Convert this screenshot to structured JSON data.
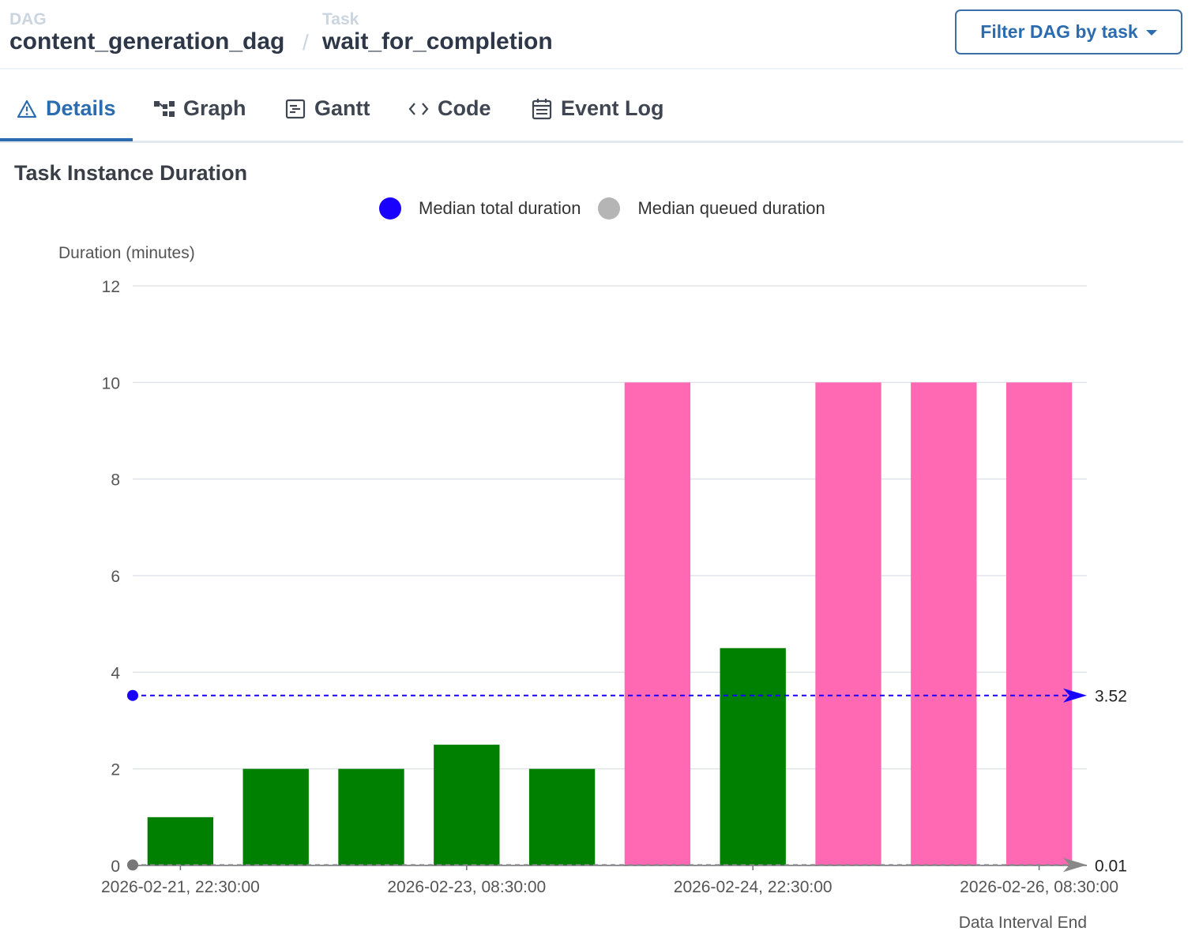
{
  "breadcrumb": {
    "dag_label": "DAG",
    "dag_value": "content_generation_dag",
    "separator": "/",
    "task_label": "Task",
    "task_value": "wait_for_completion"
  },
  "filter_button": {
    "label": "Filter DAG by task"
  },
  "tabs": [
    {
      "label": "Details",
      "icon": "warning-triangle-icon",
      "active": true
    },
    {
      "label": "Graph",
      "icon": "graph-icon",
      "active": false
    },
    {
      "label": "Gantt",
      "icon": "gantt-icon",
      "active": false
    },
    {
      "label": "Code",
      "icon": "code-icon",
      "active": false
    },
    {
      "label": "Event Log",
      "icon": "calendar-icon",
      "active": false
    }
  ],
  "section": {
    "title": "Task Instance Duration"
  },
  "legend": {
    "total_label": "Median total duration",
    "queued_label": "Median queued duration"
  },
  "colors": {
    "success": "#008000",
    "up_for_reschedule": "#ff69b4",
    "median_total": "#1a00ff",
    "median_queued": "#888888",
    "accent": "#2b6cb0"
  },
  "chart_data": {
    "type": "bar",
    "ylabel": "Duration (minutes)",
    "xlabel": "Data Interval End",
    "ylim": [
      0,
      12
    ],
    "yticks": [
      "0",
      "2",
      "4",
      "6",
      "8",
      "10",
      "12"
    ],
    "x_tick_labels": [
      "2026-02-21, 22:30:00",
      "2026-02-23, 08:30:00",
      "2026-02-24, 22:30:00",
      "2026-02-26, 08:30:00"
    ],
    "values": [
      1.0,
      2.0,
      2.0,
      2.5,
      2.0,
      10.0,
      4.5,
      10.0,
      10.0,
      10.0
    ],
    "bar_states": [
      "success",
      "success",
      "success",
      "success",
      "success",
      "up_for_reschedule",
      "success",
      "up_for_reschedule",
      "up_for_reschedule",
      "up_for_reschedule"
    ],
    "median_total": 3.52,
    "median_total_label": "3.52",
    "median_queued": 0.01,
    "median_queued_label": "0.01",
    "grid": true
  }
}
